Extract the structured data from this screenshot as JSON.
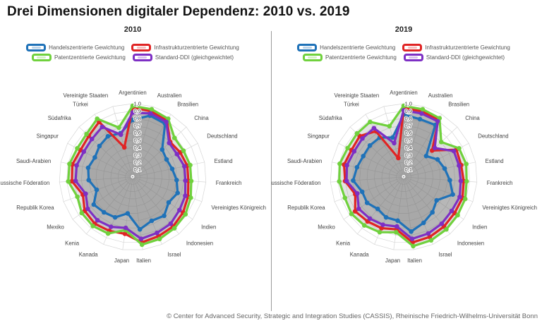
{
  "header": {
    "title": "Drei Dimensionen digitaler Dependenz: 2010 vs. 2019"
  },
  "footer": {
    "credit": "© Center for Advanced Security, Strategic and Integration Studies (CASSIS), Rheinische Friedrich-Wilhelms-Universität Bonn"
  },
  "colors": {
    "handel": "#1f72b8",
    "infrastruktur": "#e02424",
    "patent": "#70d13d",
    "standard": "#7d2fc4",
    "grid": "#d6d6d6",
    "series_fill": "rgba(110,110,110,0.2)",
    "label": "#444444",
    "tick": "#333333",
    "divider": "#9a9a9a"
  },
  "chart_data": {
    "type": "radar",
    "grid": "on",
    "legend_position": "top",
    "radial_range": [
      0,
      1
    ],
    "radial_ticks": [
      "0,1",
      "0,2",
      "0,3",
      "0,4",
      "0,5",
      "0,6",
      "0,7",
      "0,8",
      "0,9",
      "1,0"
    ],
    "center_marker": "*",
    "categories": [
      "Argentinien",
      "Australien",
      "Brasilien",
      "China",
      "Deutschland",
      "Estland",
      "Frankreich",
      "Vereinigtes Königreich",
      "Indien",
      "Indonesien",
      "Israel",
      "Italien",
      "Japan",
      "Kanada",
      "Kenia",
      "Mexiko",
      "Republik Korea",
      "Russische Föderation",
      "Saudi-Arabien",
      "Singapur",
      "Südafrika",
      "Türkei",
      "Vereinigte Staaten"
    ],
    "charts": [
      {
        "title": "2010",
        "series": [
          {
            "name": "Handelszentrierte Gewichtung",
            "color": "#1f72b8",
            "values": [
              0.78,
              0.87,
              0.85,
              0.55,
              0.52,
              0.55,
              0.6,
              0.65,
              0.6,
              0.68,
              0.65,
              0.72,
              0.5,
              0.6,
              0.62,
              0.65,
              0.52,
              0.6,
              0.62,
              0.58,
              0.62,
              0.65,
              0.62
            ]
          },
          {
            "name": "Infrastrukturzentrierte Gewichtung",
            "color": "#e02424",
            "values": [
              0.95,
              0.93,
              0.9,
              0.7,
              0.73,
              0.76,
              0.76,
              0.8,
              0.84,
              0.87,
              0.88,
              0.9,
              0.78,
              0.8,
              0.82,
              0.8,
              0.72,
              0.83,
              0.84,
              0.8,
              0.82,
              0.88,
              0.42
            ]
          },
          {
            "name": "Patentzentrierte Gewichtung",
            "color": "#70d13d",
            "values": [
              0.97,
              0.96,
              0.93,
              0.78,
              0.78,
              0.8,
              0.8,
              0.84,
              0.88,
              0.9,
              0.92,
              0.93,
              0.73,
              0.84,
              0.86,
              0.85,
              0.8,
              0.88,
              0.88,
              0.85,
              0.86,
              0.93,
              0.7
            ]
          },
          {
            "name": "Standard-DDI (gleichgewichtet)",
            "color": "#7d2fc4",
            "values": [
              0.88,
              0.9,
              0.88,
              0.68,
              0.68,
              0.72,
              0.72,
              0.76,
              0.78,
              0.82,
              0.83,
              0.85,
              0.7,
              0.74,
              0.76,
              0.75,
              0.68,
              0.78,
              0.78,
              0.75,
              0.76,
              0.8,
              0.6
            ]
          }
        ]
      },
      {
        "title": "2019",
        "series": [
          {
            "name": "Handelszentrierte Gewichtung",
            "color": "#1f72b8",
            "values": [
              0.85,
              0.82,
              0.83,
              0.42,
              0.52,
              0.57,
              0.63,
              0.71,
              0.55,
              0.62,
              0.68,
              0.75,
              0.6,
              0.6,
              0.56,
              0.61,
              0.6,
              0.69,
              0.65,
              0.62,
              0.63,
              0.63,
              0.56
            ]
          },
          {
            "name": "Infrastrukturzentrierte Gewichtung",
            "color": "#e02424",
            "values": [
              0.94,
              0.93,
              0.91,
              0.53,
              0.81,
              0.8,
              0.82,
              0.85,
              0.85,
              0.87,
              0.89,
              0.9,
              0.72,
              0.76,
              0.78,
              0.81,
              0.7,
              0.8,
              0.83,
              0.8,
              0.82,
              0.73,
              0.27
            ]
          },
          {
            "name": "Patentzentrierte Gewichtung",
            "color": "#70d13d",
            "values": [
              0.97,
              0.96,
              0.94,
              0.7,
              0.85,
              0.87,
              0.86,
              0.89,
              0.9,
              0.92,
              0.94,
              0.95,
              0.76,
              0.82,
              0.85,
              0.87,
              0.85,
              0.88,
              0.89,
              0.86,
              0.87,
              0.88,
              0.72
            ]
          },
          {
            "name": "Standard-DDI (gleichgewichtet)",
            "color": "#7d2fc4",
            "values": [
              0.91,
              0.9,
              0.89,
              0.58,
              0.77,
              0.77,
              0.78,
              0.81,
              0.8,
              0.82,
              0.84,
              0.85,
              0.68,
              0.71,
              0.73,
              0.75,
              0.67,
              0.78,
              0.79,
              0.76,
              0.77,
              0.78,
              0.48
            ]
          }
        ]
      }
    ]
  }
}
